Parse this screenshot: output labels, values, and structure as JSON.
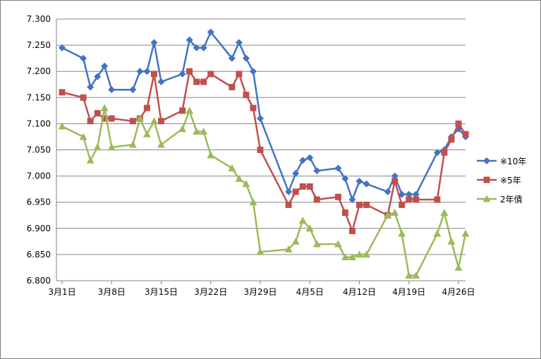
{
  "chart_data": {
    "type": "line",
    "title": "",
    "xlabel": "",
    "ylabel": "",
    "x_axis": {
      "start": "3月1日",
      "end": "4月26日",
      "tick_labels": [
        "3月1日",
        "3月8日",
        "3月15日",
        "3月22日",
        "3月29日",
        "4月5日",
        "4月12日",
        "4月19日",
        "4月26日"
      ]
    },
    "ylim": [
      6.8,
      7.3
    ],
    "y_ticks": [
      "6.800",
      "6.850",
      "6.900",
      "6.950",
      "7.000",
      "7.050",
      "7.100",
      "7.150",
      "7.200",
      "7.250",
      "7.300"
    ],
    "grid": "horizontal",
    "legend_position": "right",
    "series": [
      {
        "name": "※10年",
        "color": "#4472c4",
        "marker": "diamond",
        "x": [
          "3月1日",
          "3月4日",
          "3月5日",
          "3月6日",
          "3月7日",
          "3月8日",
          "3月11日",
          "3月12日",
          "3月13日",
          "3月14日",
          "3月15日",
          "3月18日",
          "3月19日",
          "3月20日",
          "3月21日",
          "3月22日",
          "3月25日",
          "3月26日",
          "3月27日",
          "3月28日",
          "3月29日",
          "4月2日",
          "4月3日",
          "4月4日",
          "4月5日",
          "4月6日",
          "4月9日",
          "4月10日",
          "4月11日",
          "4月12日",
          "4月13日",
          "4月16日",
          "4月17日",
          "4月18日",
          "4月19日",
          "4月20日",
          "4月23日",
          "4月24日",
          "4月25日",
          "4月26日",
          "4月27日"
        ],
        "values": [
          7.245,
          7.225,
          7.17,
          7.19,
          7.21,
          7.165,
          7.165,
          7.2,
          7.2,
          7.255,
          7.18,
          7.195,
          7.26,
          7.245,
          7.245,
          7.275,
          7.225,
          7.255,
          7.225,
          7.2,
          7.11,
          6.97,
          7.005,
          7.03,
          7.035,
          7.01,
          7.015,
          6.995,
          6.955,
          6.99,
          6.985,
          6.97,
          7.0,
          6.965,
          6.965,
          6.965,
          7.045,
          7.05,
          7.075,
          7.09,
          7.075
        ]
      },
      {
        "name": "※5年",
        "color": "#c0504d",
        "marker": "square",
        "x": [
          "3月1日",
          "3月4日",
          "3月5日",
          "3月6日",
          "3月7日",
          "3月8日",
          "3月11日",
          "3月12日",
          "3月13日",
          "3月14日",
          "3月15日",
          "3月18日",
          "3月19日",
          "3月20日",
          "3月21日",
          "3月22日",
          "3月25日",
          "3月26日",
          "3月27日",
          "3月28日",
          "3月29日",
          "4月2日",
          "4月3日",
          "4月4日",
          "4月5日",
          "4月6日",
          "4月9日",
          "4月10日",
          "4月11日",
          "4月12日",
          "4月13日",
          "4月16日",
          "4月17日",
          "4月18日",
          "4月19日",
          "4月20日",
          "4月23日",
          "4月24日",
          "4月25日",
          "4月26日",
          "4月27日"
        ],
        "values": [
          7.16,
          7.15,
          7.105,
          7.12,
          7.11,
          7.11,
          7.105,
          7.11,
          7.13,
          7.195,
          7.105,
          7.125,
          7.2,
          7.18,
          7.18,
          7.195,
          7.17,
          7.195,
          7.155,
          7.13,
          7.05,
          6.945,
          6.97,
          6.98,
          6.98,
          6.955,
          6.96,
          6.93,
          6.895,
          6.945,
          6.945,
          6.925,
          6.99,
          6.945,
          6.955,
          6.955,
          6.955,
          7.045,
          7.07,
          7.1,
          7.08
        ]
      },
      {
        "name": "2年債",
        "color": "#9bbb59",
        "marker": "triangle",
        "x": [
          "3月1日",
          "3月4日",
          "3月5日",
          "3月6日",
          "3月7日",
          "3月8日",
          "3月11日",
          "3月12日",
          "3月13日",
          "3月14日",
          "3月15日",
          "3月18日",
          "3月19日",
          "3月20日",
          "3月21日",
          "3月22日",
          "3月25日",
          "3月26日",
          "3月27日",
          "3月28日",
          "3月29日",
          "4月2日",
          "4月3日",
          "4月4日",
          "4月5日",
          "4月6日",
          "4月9日",
          "4月10日",
          "4月11日",
          "4月12日",
          "4月13日",
          "4月16日",
          "4月17日",
          "4月18日",
          "4月19日",
          "4月20日",
          "4月23日",
          "4月24日",
          "4月25日",
          "4月26日",
          "4月27日"
        ],
        "values": [
          7.095,
          7.075,
          7.03,
          7.055,
          7.13,
          7.055,
          7.06,
          7.11,
          7.08,
          7.105,
          7.06,
          7.09,
          7.125,
          7.085,
          7.085,
          7.04,
          7.015,
          6.995,
          6.985,
          6.95,
          6.855,
          6.86,
          6.875,
          6.915,
          6.9,
          6.87,
          6.87,
          6.845,
          6.845,
          6.85,
          6.85,
          6.925,
          6.93,
          6.89,
          6.81,
          6.81,
          6.89,
          6.93,
          6.875,
          6.825,
          6.89
        ]
      }
    ]
  }
}
